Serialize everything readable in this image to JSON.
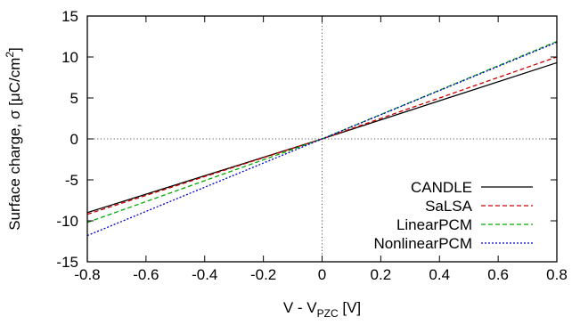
{
  "chart_data": {
    "type": "line",
    "title": "",
    "xlabel": {
      "main": "V - V",
      "sub": "PZC",
      "unit": " [V]"
    },
    "ylabel": {
      "main": "Surface charge, σ [μC/cm",
      "sup": "2",
      "end": "]"
    },
    "xlim": [
      -0.8,
      0.8
    ],
    "ylim": [
      -15,
      15
    ],
    "xticks": [
      -0.8,
      -0.6,
      -0.4,
      -0.2,
      0,
      0.2,
      0.4,
      0.6,
      0.8
    ],
    "xtick_labels": [
      "-0.8",
      "-0.6",
      "-0.4",
      "-0.2",
      "0",
      "0.2",
      "0.4",
      "0.6",
      "0.8"
    ],
    "yticks": [
      -15,
      -10,
      -5,
      0,
      5,
      10,
      15
    ],
    "ytick_labels": [
      "-15",
      "-10",
      "-5",
      "0",
      "5",
      "10",
      "15"
    ],
    "grid": false,
    "zero_lines": true,
    "legend_position": "bottom-right",
    "series": [
      {
        "name": "CANDLE",
        "color": "#000000",
        "dash": "solid",
        "x": [
          -0.8,
          0,
          0.8
        ],
        "y": [
          -9.0,
          0,
          9.3
        ]
      },
      {
        "name": "SaLSA",
        "color": "#cc0000",
        "dash": "dashed",
        "x": [
          -0.8,
          0,
          0.8
        ],
        "y": [
          -9.2,
          0,
          10.0
        ]
      },
      {
        "name": "LinearPCM",
        "color": "#00aa00",
        "dash": "dashed",
        "x": [
          -0.8,
          0,
          0.8
        ],
        "y": [
          -10.2,
          0,
          11.9
        ]
      },
      {
        "name": "NonlinearPCM",
        "color": "#0000cc",
        "dash": "dotted",
        "x": [
          -0.8,
          0,
          0.8
        ],
        "y": [
          -11.8,
          0,
          11.8
        ]
      }
    ]
  }
}
